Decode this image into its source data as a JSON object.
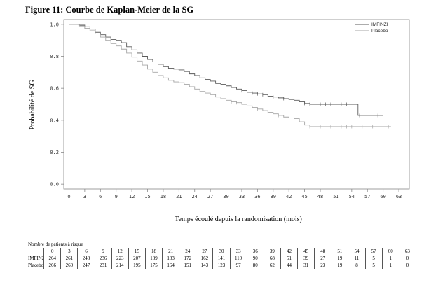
{
  "figure_title": "Figure 11: Courbe de Kaplan-Meier de la SG",
  "colors": {
    "imfinzi": "#5a5a5a",
    "placebo": "#a6a6a6",
    "frame": "#888888"
  },
  "chart_data": {
    "type": "line",
    "title": "Figure 11: Courbe de Kaplan-Meier de la SG",
    "xlabel": "Temps écoulé depuis la randomisation (mois)",
    "ylabel": "Probabilité de SG",
    "xlim": [
      -1,
      65
    ],
    "ylim": [
      -0.03,
      1.03
    ],
    "x_ticks": [
      0,
      3,
      6,
      9,
      12,
      15,
      18,
      21,
      24,
      27,
      30,
      33,
      36,
      39,
      42,
      45,
      48,
      51,
      54,
      57,
      60,
      63
    ],
    "y_ticks": [
      0.0,
      0.2,
      0.4,
      0.6,
      0.8,
      1.0
    ],
    "y_tick_labels": [
      "0.0",
      "0.2",
      "0.4",
      "0.6",
      "0.8",
      "1.0"
    ],
    "legend_position": "top-right",
    "series": [
      {
        "name": "IMFINZI",
        "color": "#5a5a5a",
        "points": [
          [
            0,
            1.0
          ],
          [
            1,
            1.0
          ],
          [
            2,
            0.995
          ],
          [
            3,
            0.985
          ],
          [
            4,
            0.97
          ],
          [
            5,
            0.95
          ],
          [
            6,
            0.935
          ],
          [
            7,
            0.92
          ],
          [
            8,
            0.905
          ],
          [
            9,
            0.9
          ],
          [
            10,
            0.885
          ],
          [
            11,
            0.86
          ],
          [
            12,
            0.84
          ],
          [
            13,
            0.82
          ],
          [
            14,
            0.8
          ],
          [
            15,
            0.78
          ],
          [
            16,
            0.765
          ],
          [
            17,
            0.75
          ],
          [
            18,
            0.735
          ],
          [
            19,
            0.725
          ],
          [
            20,
            0.72
          ],
          [
            21,
            0.715
          ],
          [
            22,
            0.705
          ],
          [
            23,
            0.69
          ],
          [
            24,
            0.68
          ],
          [
            25,
            0.665
          ],
          [
            26,
            0.655
          ],
          [
            27,
            0.645
          ],
          [
            28,
            0.63
          ],
          [
            29,
            0.625
          ],
          [
            30,
            0.615
          ],
          [
            31,
            0.605
          ],
          [
            32,
            0.595
          ],
          [
            33,
            0.585
          ],
          [
            34,
            0.575
          ],
          [
            35,
            0.57
          ],
          [
            36,
            0.565
          ],
          [
            37,
            0.56
          ],
          [
            38,
            0.55
          ],
          [
            39,
            0.545
          ],
          [
            40,
            0.54
          ],
          [
            41,
            0.535
          ],
          [
            42,
            0.53
          ],
          [
            43,
            0.525
          ],
          [
            44,
            0.515
          ],
          [
            45,
            0.505
          ],
          [
            46,
            0.5
          ],
          [
            48,
            0.5
          ],
          [
            50,
            0.5
          ],
          [
            52,
            0.5
          ],
          [
            54,
            0.5
          ],
          [
            55,
            0.5
          ],
          [
            55.2,
            0.43
          ],
          [
            60,
            0.43
          ]
        ],
        "censor_x": [
          33,
          34,
          35,
          36,
          37,
          39,
          41,
          43,
          45,
          46,
          47,
          48,
          49,
          50,
          51,
          52,
          53,
          55.5,
          59,
          60
        ]
      },
      {
        "name": "Placebo",
        "color": "#a6a6a6",
        "points": [
          [
            0,
            1.0
          ],
          [
            1,
            1.0
          ],
          [
            2,
            0.99
          ],
          [
            3,
            0.975
          ],
          [
            4,
            0.96
          ],
          [
            5,
            0.94
          ],
          [
            6,
            0.92
          ],
          [
            7,
            0.9
          ],
          [
            8,
            0.88
          ],
          [
            9,
            0.865
          ],
          [
            10,
            0.845
          ],
          [
            11,
            0.82
          ],
          [
            12,
            0.795
          ],
          [
            13,
            0.77
          ],
          [
            14,
            0.745
          ],
          [
            15,
            0.72
          ],
          [
            16,
            0.7
          ],
          [
            17,
            0.68
          ],
          [
            18,
            0.665
          ],
          [
            19,
            0.65
          ],
          [
            20,
            0.64
          ],
          [
            21,
            0.635
          ],
          [
            22,
            0.625
          ],
          [
            23,
            0.61
          ],
          [
            24,
            0.595
          ],
          [
            25,
            0.58
          ],
          [
            26,
            0.57
          ],
          [
            27,
            0.56
          ],
          [
            28,
            0.545
          ],
          [
            29,
            0.535
          ],
          [
            30,
            0.525
          ],
          [
            31,
            0.515
          ],
          [
            32,
            0.51
          ],
          [
            33,
            0.5
          ],
          [
            34,
            0.49
          ],
          [
            35,
            0.48
          ],
          [
            36,
            0.47
          ],
          [
            37,
            0.46
          ],
          [
            38,
            0.45
          ],
          [
            39,
            0.44
          ],
          [
            40,
            0.43
          ],
          [
            41,
            0.42
          ],
          [
            42,
            0.415
          ],
          [
            43,
            0.41
          ],
          [
            44,
            0.39
          ],
          [
            45,
            0.37
          ],
          [
            46,
            0.36
          ],
          [
            50,
            0.36
          ],
          [
            55,
            0.36
          ],
          [
            61.5,
            0.36
          ]
        ],
        "censor_x": [
          31,
          32,
          34,
          36,
          38,
          40,
          43,
          46,
          48,
          50,
          51,
          52,
          53,
          54,
          56,
          58,
          61
        ]
      }
    ]
  },
  "risk_table": {
    "header": "Nombre de patients à risque",
    "timepoints": [
      "0",
      "3",
      "6",
      "9",
      "12",
      "15",
      "18",
      "21",
      "24",
      "27",
      "30",
      "33",
      "36",
      "39",
      "42",
      "45",
      "48",
      "51",
      "54",
      "57",
      "60",
      "63"
    ],
    "rows": [
      {
        "label": "IMFINZI",
        "values": [
          "264",
          "261",
          "248",
          "236",
          "223",
          "207",
          "189",
          "183",
          "172",
          "162",
          "141",
          "110",
          "90",
          "68",
          "51",
          "39",
          "27",
          "19",
          "11",
          "5",
          "1",
          "0"
        ]
      },
      {
        "label": "Placebo",
        "values": [
          "266",
          "260",
          "247",
          "231",
          "214",
          "195",
          "175",
          "164",
          "151",
          "143",
          "123",
          "97",
          "80",
          "62",
          "44",
          "31",
          "23",
          "19",
          "8",
          "5",
          "1",
          "0"
        ]
      }
    ]
  }
}
